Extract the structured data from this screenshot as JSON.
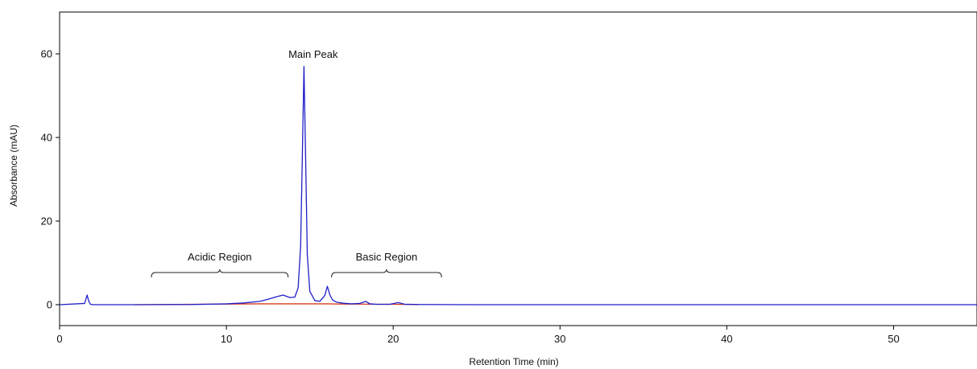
{
  "chart_data": {
    "type": "line",
    "title": "",
    "xlabel": "Retention Time (min)",
    "ylabel": "Absorbance (mAU)",
    "xlim": [
      0,
      55
    ],
    "ylim": [
      -5,
      70
    ],
    "xticks": [
      0,
      10,
      20,
      30,
      40,
      50
    ],
    "yticks": [
      0,
      20,
      40,
      60
    ],
    "grid": false,
    "legend": "none",
    "series": [
      {
        "color": "#1f1fc8",
        "x": [
          0,
          1.5,
          1.65,
          1.75,
          1.85,
          2.0,
          5.0,
          8.0,
          10.0,
          11.0,
          12.0,
          12.5,
          13.0,
          13.4,
          13.8,
          14.1,
          14.3,
          14.45,
          14.55,
          14.65,
          14.75,
          14.85,
          15.0,
          15.3,
          15.6,
          15.9,
          16.05,
          16.2,
          16.35,
          16.6,
          17.0,
          17.5,
          18.0,
          18.35,
          18.6,
          19.0,
          19.8,
          20.3,
          20.7,
          21.5,
          25.0,
          30.0,
          40.0,
          50.0,
          55.0
        ],
        "y": [
          0.0,
          0.3,
          2.3,
          0.8,
          0.1,
          0.0,
          0.0,
          0.05,
          0.2,
          0.4,
          0.8,
          1.3,
          1.9,
          2.3,
          1.7,
          1.8,
          4.0,
          14.0,
          35.0,
          57.0,
          35.0,
          12.0,
          3.2,
          1.0,
          0.8,
          2.2,
          4.4,
          2.4,
          1.2,
          0.6,
          0.35,
          0.2,
          0.3,
          0.8,
          0.2,
          0.1,
          0.1,
          0.5,
          0.1,
          0.05,
          0.0,
          0.0,
          0.0,
          0.0,
          0.0
        ]
      },
      {
        "color": "#d93b1b",
        "x": [
          4.5,
          6.0,
          8.0,
          10.0,
          12.0,
          13.0,
          14.0,
          14.5,
          15.0,
          16.0,
          17.0,
          18.0,
          19.0,
          20.0,
          21.0,
          21.5
        ],
        "y": [
          0.0,
          0.05,
          0.1,
          0.15,
          0.2,
          0.2,
          0.2,
          0.2,
          0.2,
          0.2,
          0.15,
          0.15,
          0.1,
          0.1,
          0.05,
          0.0
        ]
      }
    ],
    "annotations": [
      {
        "text": "Main Peak",
        "x": 15.2,
        "y": 60
      },
      {
        "text": "Acidic Region",
        "from": 5.5,
        "to": 13.7,
        "y": 7.7,
        "label_y": 10.6
      },
      {
        "text": "Basic Region",
        "from": 16.3,
        "to": 22.9,
        "y": 7.7,
        "label_y": 10.6
      }
    ]
  }
}
